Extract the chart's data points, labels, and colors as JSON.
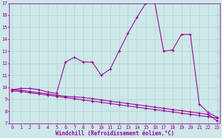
{
  "xlabel": "Windchill (Refroidissement éolien,°C)",
  "bg_color": "#cce8e8",
  "line_color": "#990099",
  "grid_color": "#b0c8c8",
  "xmin": 0,
  "xmax": 23,
  "ymin": 7,
  "ymax": 17,
  "series1": [
    9.8,
    9.9,
    9.9,
    9.8,
    9.6,
    9.5,
    12.1,
    12.5,
    12.1,
    12.1,
    11.0,
    11.5,
    13.0,
    14.5,
    15.8,
    17.0,
    17.1,
    13.0,
    13.1,
    14.4,
    14.4,
    8.6,
    7.9,
    7.5
  ],
  "series2": [
    9.8,
    9.75,
    9.65,
    9.55,
    9.45,
    9.35,
    9.25,
    9.2,
    9.15,
    9.05,
    8.95,
    8.85,
    8.75,
    8.65,
    8.55,
    8.45,
    8.35,
    8.25,
    8.15,
    8.05,
    7.95,
    7.85,
    7.75,
    7.2
  ],
  "series3": [
    9.7,
    9.65,
    9.55,
    9.45,
    9.35,
    9.25,
    9.15,
    9.05,
    8.95,
    8.85,
    8.75,
    8.65,
    8.55,
    8.45,
    8.35,
    8.25,
    8.15,
    8.05,
    7.95,
    7.85,
    7.75,
    7.65,
    7.55,
    7.45
  ]
}
